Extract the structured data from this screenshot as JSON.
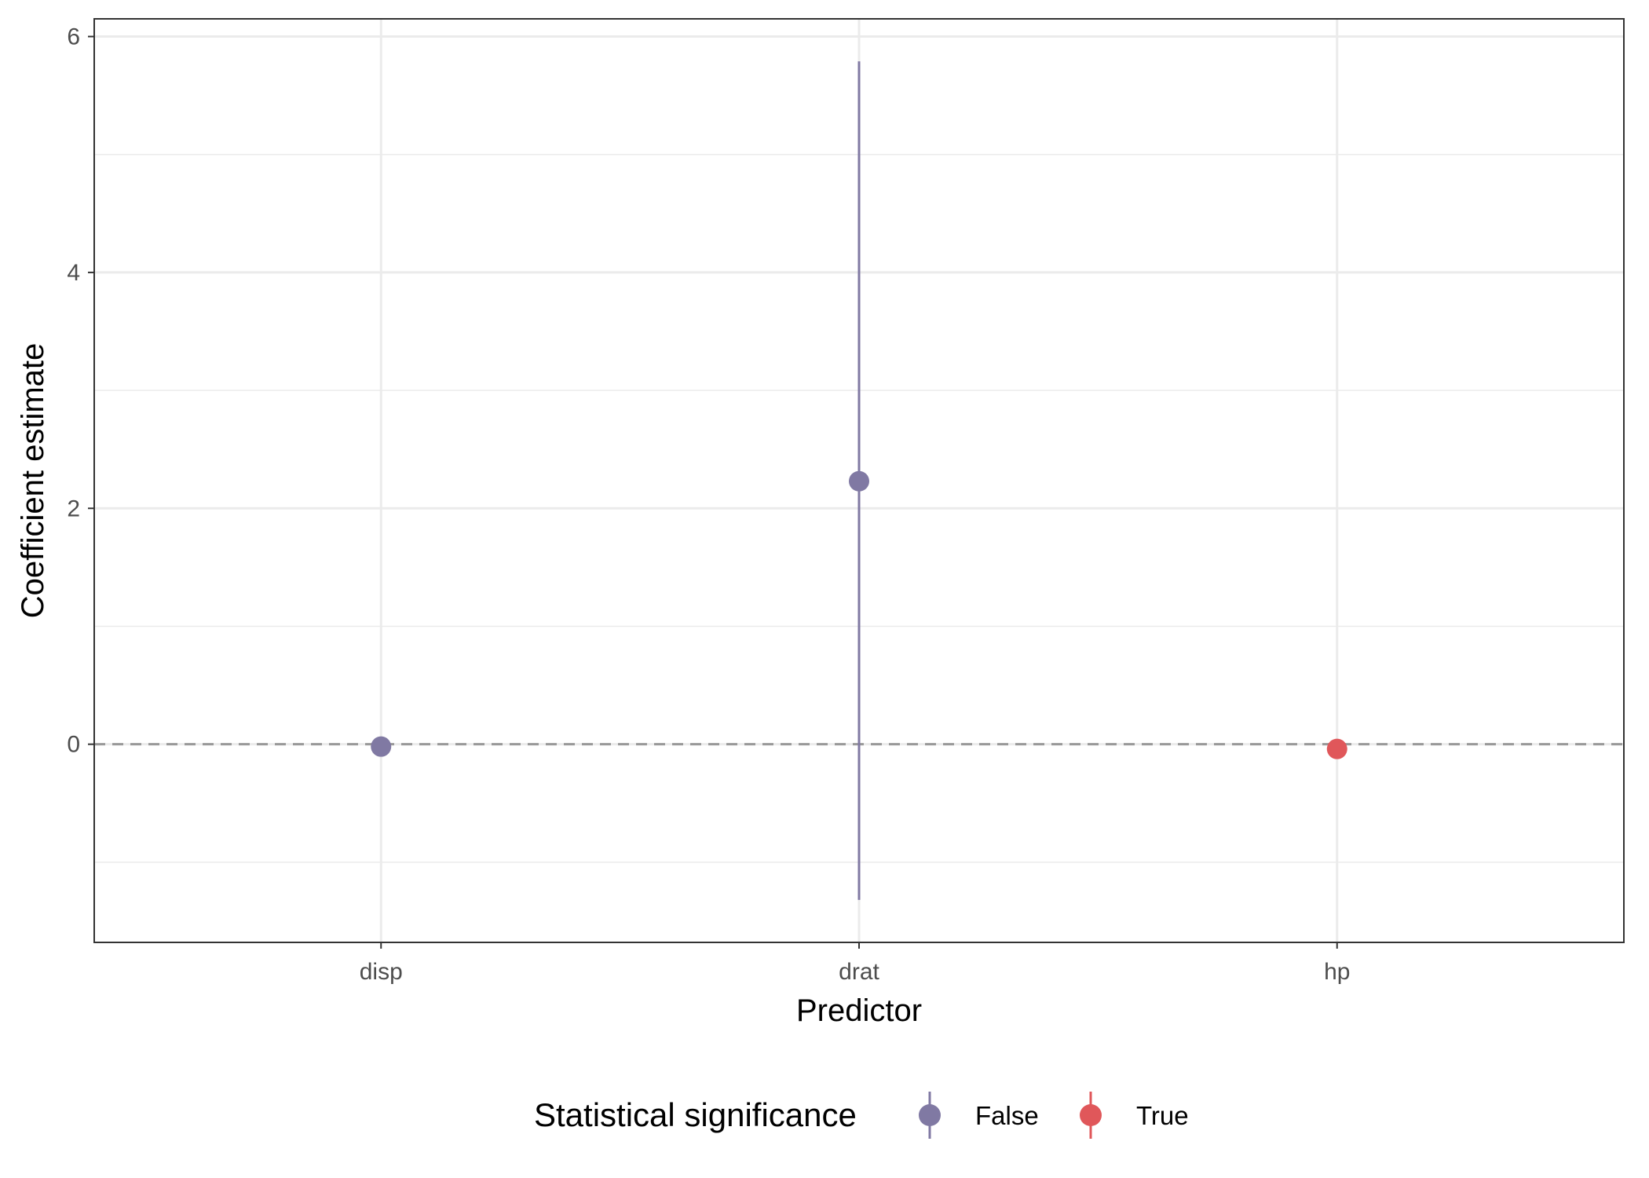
{
  "chart_data": {
    "type": "scatter",
    "subtype": "point-range",
    "title": "",
    "xlabel": "Predictor",
    "ylabel": "Coefficient estimate",
    "categories": [
      "disp",
      "drat",
      "hp"
    ],
    "points": [
      {
        "predictor": "disp",
        "estimate": -0.02,
        "lower": -0.04,
        "upper": 0.0,
        "significant": "False"
      },
      {
        "predictor": "drat",
        "estimate": 2.23,
        "lower": -1.32,
        "upper": 5.79,
        "significant": "False"
      },
      {
        "predictor": "hp",
        "estimate": -0.04,
        "lower": -0.06,
        "upper": -0.02,
        "significant": "True"
      }
    ],
    "ylim": [
      -1.68,
      6.15
    ],
    "yticks": [
      0,
      2,
      4,
      6
    ],
    "yticks_minor": [
      -1,
      1,
      3,
      5
    ],
    "reference_line": {
      "y": 0,
      "style": "dashed",
      "color": "#999999"
    },
    "grid": true,
    "legend": {
      "title": "Statistical significance",
      "position": "bottom",
      "entries": [
        {
          "label": "False",
          "color": "#8079a3"
        },
        {
          "label": "True",
          "color": "#e0575a"
        }
      ]
    }
  }
}
